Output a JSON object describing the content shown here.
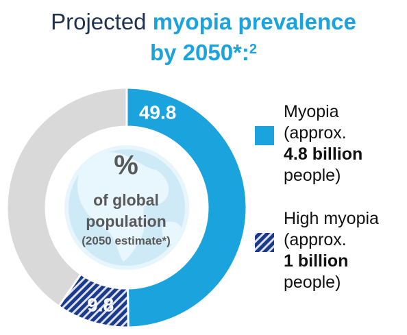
{
  "header": {
    "title_dark": "Projected ",
    "title_blue_1": "myopia prevalence",
    "title_blue_2": "by 2050*:",
    "footnote_ref": "2"
  },
  "chart_data": {
    "type": "donut",
    "total": 100,
    "unit": "%",
    "series": [
      {
        "name": "Myopia",
        "value": 49.8,
        "label": "49.8",
        "color": "#1aa3dc"
      },
      {
        "name": "High myopia",
        "value": 9.8,
        "label": "9.8",
        "color": "#1b3a8c",
        "pattern": "hatched"
      }
    ],
    "remainder_color": "#d9d9d9",
    "center": {
      "line1": "%",
      "line2": "of global",
      "line3": "population",
      "line4": "(2050 estimate*)"
    }
  },
  "legend": {
    "myopia": {
      "line1": "Myopia",
      "line2": "(approx.",
      "line3": "4.8 billion",
      "line4": "people)"
    },
    "high_myopia": {
      "line1": "High myopia",
      "line2": "(approx.",
      "line3": "1 billion",
      "line4": "people)"
    }
  }
}
